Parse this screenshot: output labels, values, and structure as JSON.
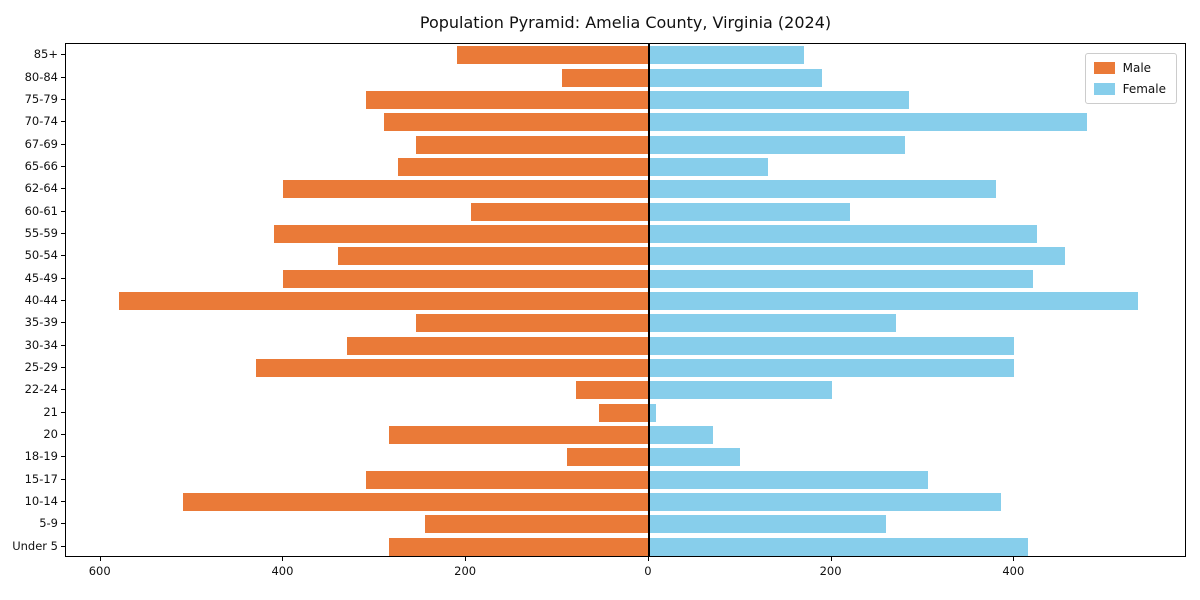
{
  "title": "Population Pyramid: Amelia County, Virginia (2024)",
  "legend": {
    "male_label": "Male",
    "female_label": "Female"
  },
  "colors": {
    "male": "#EA7A38",
    "female": "#87CEEB",
    "axis": "#000000"
  },
  "chart_data": {
    "type": "bar",
    "subtype": "population-pyramid",
    "orientation": "horizontal",
    "title": "Population Pyramid: Amelia County, Virginia (2024)",
    "categories": [
      "85+",
      "80-84",
      "75-79",
      "70-74",
      "67-69",
      "65-66",
      "62-64",
      "60-61",
      "55-59",
      "50-54",
      "45-49",
      "40-44",
      "35-39",
      "30-34",
      "25-29",
      "22-24",
      "21",
      "20",
      "18-19",
      "15-17",
      "10-14",
      "5-9",
      "Under 5"
    ],
    "series": [
      {
        "name": "Male",
        "side": "left",
        "color": "#EA7A38",
        "values": [
          210,
          95,
          310,
          290,
          255,
          275,
          400,
          195,
          410,
          340,
          400,
          580,
          255,
          330,
          430,
          80,
          55,
          285,
          90,
          310,
          510,
          245,
          285
        ]
      },
      {
        "name": "Female",
        "side": "right",
        "color": "#87CEEB",
        "values": [
          170,
          190,
          285,
          480,
          280,
          130,
          380,
          220,
          425,
          455,
          420,
          535,
          270,
          400,
          400,
          200,
          8,
          70,
          100,
          305,
          385,
          260,
          415
        ]
      }
    ],
    "xlim": [
      -638,
      589
    ],
    "xticks": [
      {
        "value": -600,
        "label": "600"
      },
      {
        "value": -400,
        "label": "400"
      },
      {
        "value": -200,
        "label": "200"
      },
      {
        "value": 0,
        "label": "0"
      },
      {
        "value": 200,
        "label": "200"
      },
      {
        "value": 400,
        "label": "400"
      }
    ],
    "xlabel": "",
    "ylabel": "",
    "grid": false,
    "legend_position": "upper right",
    "zero_axis_line": true
  }
}
